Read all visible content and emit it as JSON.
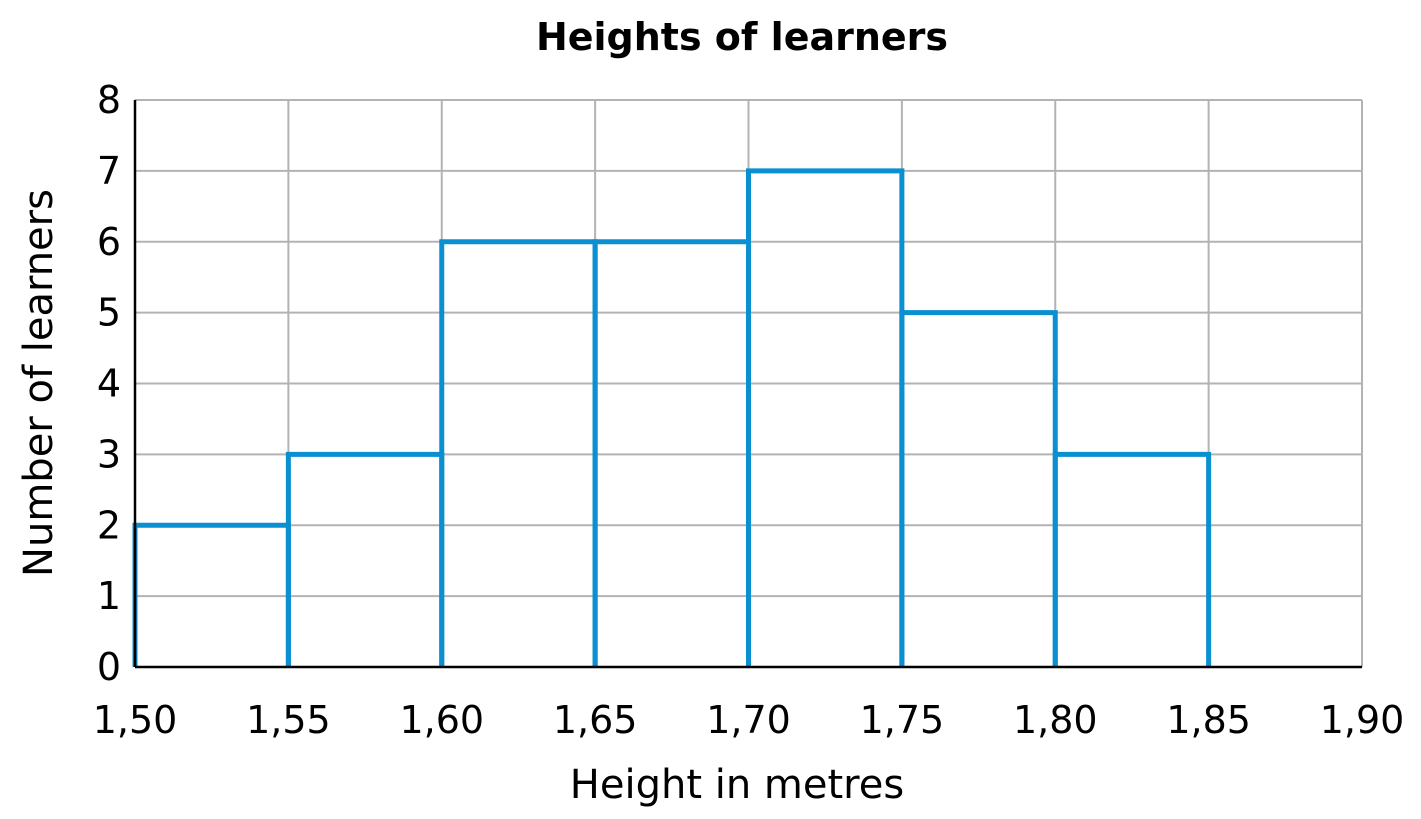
{
  "chart_data": {
    "type": "bar",
    "title": "Heights of learners",
    "xlabel": "Height in metres",
    "ylabel": "Number of learners",
    "x_ticks": [
      "1,50",
      "1,55",
      "1,60",
      "1,65",
      "1,70",
      "1,75",
      "1,80",
      "1,85",
      "1,90"
    ],
    "y_ticks": [
      "0",
      "1",
      "2",
      "3",
      "4",
      "5",
      "6",
      "7",
      "8"
    ],
    "bins": [
      {
        "start": 1.5,
        "end": 1.55,
        "value": 2
      },
      {
        "start": 1.55,
        "end": 1.6,
        "value": 3
      },
      {
        "start": 1.6,
        "end": 1.65,
        "value": 6
      },
      {
        "start": 1.65,
        "end": 1.7,
        "value": 6
      },
      {
        "start": 1.7,
        "end": 1.75,
        "value": 7
      },
      {
        "start": 1.75,
        "end": 1.8,
        "value": 5
      },
      {
        "start": 1.8,
        "end": 1.85,
        "value": 3
      }
    ],
    "xlim": [
      1.5,
      1.9
    ],
    "ylim": [
      0,
      8
    ],
    "grid": true,
    "bar_color": "#0a8fd1"
  }
}
